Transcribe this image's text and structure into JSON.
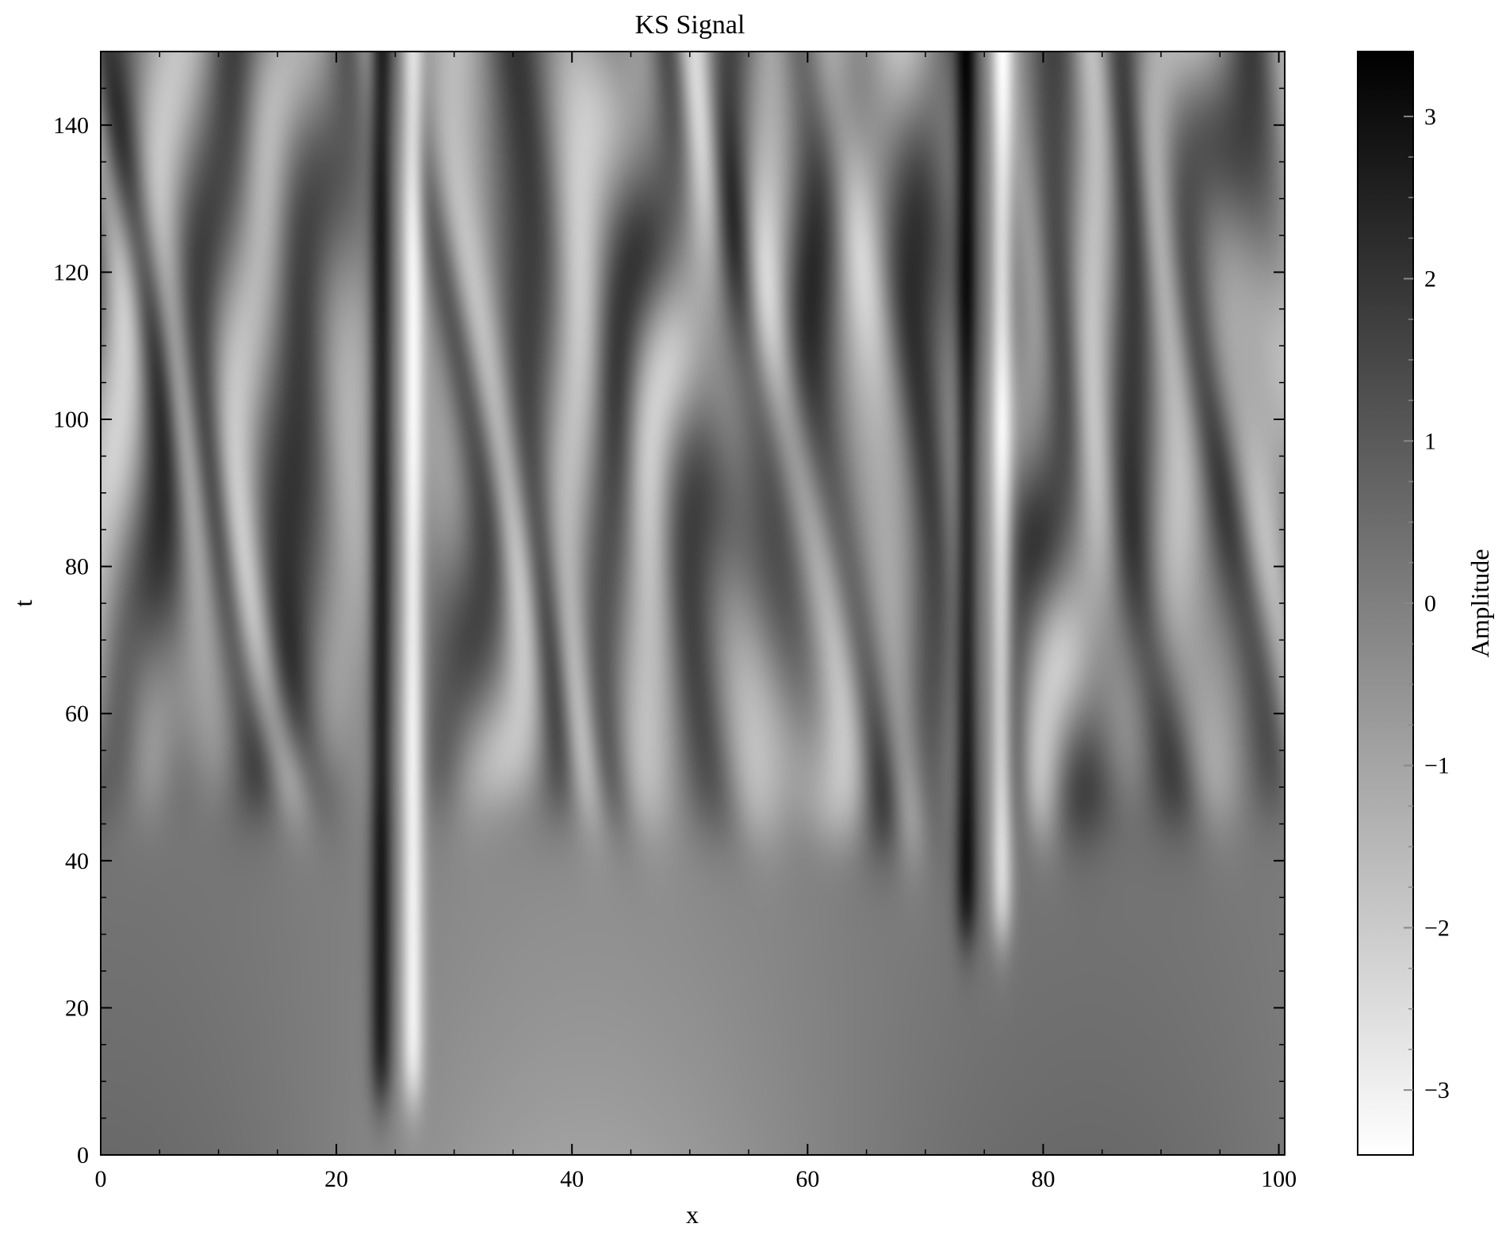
{
  "chart_data": {
    "type": "heatmap",
    "title": "KS Signal",
    "xlabel": "x",
    "ylabel": "t",
    "xlim": [
      0,
      100.5
    ],
    "ylim": [
      0,
      150
    ],
    "x_ticks": [
      0,
      20,
      40,
      60,
      80,
      100
    ],
    "y_ticks": [
      0,
      20,
      40,
      60,
      80,
      100,
      120,
      140
    ],
    "colormap": "gray_r",
    "colorbar": {
      "label": "Amplitude",
      "range": [
        -3.4,
        3.4
      ],
      "ticks": [
        -3,
        -2,
        -1,
        0,
        1,
        2,
        3
      ],
      "tick_labels": [
        "−3",
        "−2",
        "−1",
        "0",
        "1",
        "2",
        "3"
      ]
    },
    "grid": false,
    "features": {
      "stationary_dark_ridges_x": [
        23.8,
        73.5
      ],
      "stationary_light_ridges_x": [
        26.5,
        76.5
      ],
      "chaotic_onset_t": 50
    }
  }
}
